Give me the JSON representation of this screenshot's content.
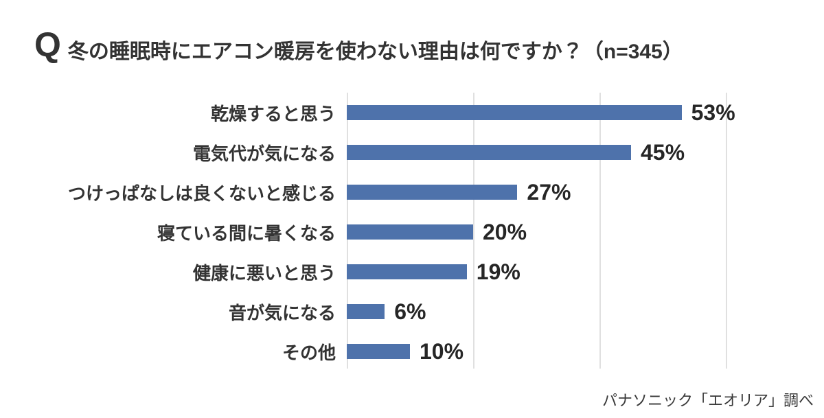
{
  "header": {
    "q_label": "Q",
    "title": "冬の睡眠時にエアコン暖房を使わない理由は何ですか？（n=345）"
  },
  "footer": {
    "source": "パナソニック「エオリア」調べ"
  },
  "colors": {
    "background": "#ffffff",
    "bar": "#4e72ab",
    "gridline": "#e0e0e0",
    "title_text": "#333333",
    "category_text": "#333333",
    "value_text": "#262626",
    "footer_text": "#3a3a3a"
  },
  "chart_data": {
    "type": "bar",
    "orientation": "horizontal",
    "title": "冬の睡眠時にエアコン暖房を使わない理由は何ですか？（n=345）",
    "question_prefix": "Q",
    "sample_size_label": "n=345",
    "categories": [
      "乾燥すると思う",
      "電気代が気になる",
      "つけっぱなしは良くないと感じる",
      "寝ている間に暑くなる",
      "健康に悪いと思う",
      "音が気になる",
      "その他"
    ],
    "values": [
      53,
      45,
      27,
      20,
      19,
      6,
      10
    ],
    "value_labels": [
      "53%",
      "45%",
      "27%",
      "20%",
      "19%",
      "6%",
      "10%"
    ],
    "unit": "%",
    "xlabel": "",
    "ylabel": "",
    "xlim": [
      0,
      60
    ],
    "x_gridlines": [
      0,
      20,
      40,
      60
    ],
    "grid": "vertical-only",
    "legend": "none",
    "data_label_position": "outside-end",
    "source": "パナソニック「エオリア」調べ"
  }
}
